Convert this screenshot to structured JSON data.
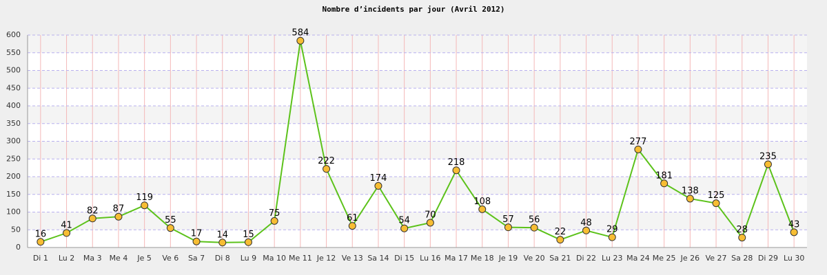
{
  "chart_data": {
    "type": "line",
    "title": "Nombre d’incidents par jour (Avril 2012)",
    "categories": [
      "Di 1",
      "Lu 2",
      "Ma 3",
      "Me 4",
      "Je 5",
      "Ve 6",
      "Sa 7",
      "Di 8",
      "Lu 9",
      "Ma 10",
      "Me 11",
      "Je 12",
      "Ve 13",
      "Sa 14",
      "Di 15",
      "Lu 16",
      "Ma 17",
      "Me 18",
      "Je 19",
      "Ve 20",
      "Sa 21",
      "Di 22",
      "Lu 23",
      "Ma 24",
      "Me 25",
      "Je 26",
      "Ve 27",
      "Sa 28",
      "Di 29",
      "Lu 30"
    ],
    "values": [
      16,
      41,
      82,
      87,
      119,
      55,
      17,
      14,
      15,
      75,
      584,
      222,
      61,
      174,
      54,
      70,
      218,
      108,
      57,
      56,
      22,
      48,
      29,
      277,
      181,
      138,
      125,
      28,
      235,
      43
    ],
    "color": "#5cc21a",
    "marker_color": "#f7bd33",
    "ylim": [
      0,
      600
    ],
    "yticks": [
      0,
      50,
      100,
      150,
      200,
      250,
      300,
      350,
      400,
      450,
      500,
      550,
      600
    ],
    "grid": true
  }
}
